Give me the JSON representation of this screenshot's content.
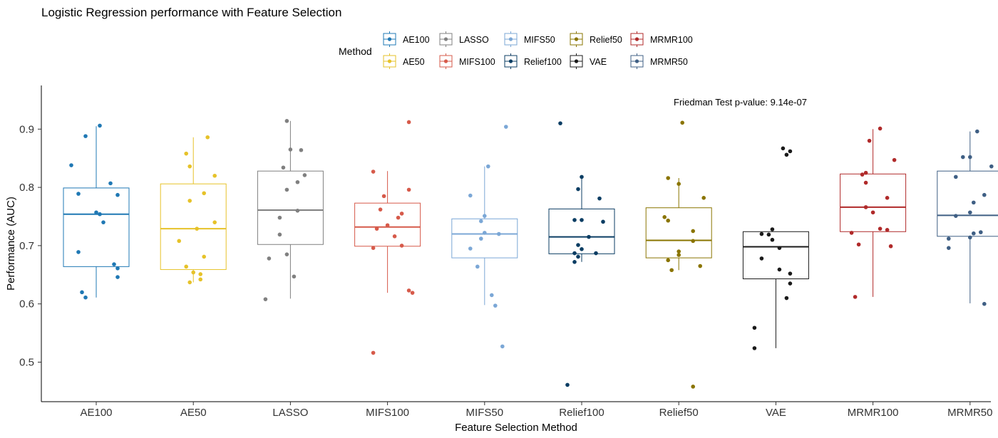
{
  "chart_data": {
    "type": "boxplot",
    "title": "Logistic Regression performance with Feature Selection",
    "xlabel": "Feature Selection Method",
    "ylabel": "Performance (AUC)",
    "ylim": [
      0.43,
      0.98
    ],
    "yticks": [
      0.5,
      0.6,
      0.7,
      0.8,
      0.9
    ],
    "ytick_labels": [
      "0.5",
      "0.6",
      "0.7",
      "0.8",
      "0.9"
    ],
    "annotation": "Friedman Test p-value: 9.14e-07",
    "legend": {
      "title": "Method",
      "placement": "top",
      "entries": [
        "AE100",
        "AE50",
        "LASSO",
        "MIFS100",
        "MIFS50",
        "Relief100",
        "Relief50",
        "VAE",
        "MRMR100",
        "MRMR50"
      ]
    },
    "grid": false,
    "categories": [
      "AE100",
      "AE50",
      "LASSO",
      "MIFS100",
      "MIFS50",
      "Relief100",
      "Relief50",
      "VAE",
      "MRMR100",
      "MRMR50"
    ],
    "series": [
      {
        "name": "AE100",
        "color": "#1f78b4",
        "box": {
          "lower": 0.611,
          "q1": 0.664,
          "median": 0.754,
          "q3": 0.799,
          "upper": 0.905
        },
        "points": [
          [
            -0.35,
            0.838
          ],
          [
            -0.15,
            0.888
          ],
          [
            0.05,
            0.906
          ],
          [
            -0.25,
            0.789
          ],
          [
            0.2,
            0.807
          ],
          [
            0.3,
            0.787
          ],
          [
            0.0,
            0.757
          ],
          [
            0.05,
            0.754
          ],
          [
            0.1,
            0.74
          ],
          [
            -0.25,
            0.689
          ],
          [
            0.25,
            0.668
          ],
          [
            0.3,
            0.661
          ],
          [
            0.3,
            0.646
          ],
          [
            -0.2,
            0.62
          ],
          [
            -0.15,
            0.611
          ]
        ]
      },
      {
        "name": "AE50",
        "color": "#e6c229",
        "box": {
          "lower": 0.637,
          "q1": 0.659,
          "median": 0.729,
          "q3": 0.806,
          "upper": 0.886
        },
        "points": [
          [
            0.2,
            0.886
          ],
          [
            -0.1,
            0.858
          ],
          [
            -0.05,
            0.836
          ],
          [
            0.3,
            0.82
          ],
          [
            0.15,
            0.79
          ],
          [
            -0.05,
            0.777
          ],
          [
            0.3,
            0.74
          ],
          [
            0.05,
            0.729
          ],
          [
            -0.2,
            0.708
          ],
          [
            0.15,
            0.681
          ],
          [
            -0.1,
            0.664
          ],
          [
            0.0,
            0.654
          ],
          [
            0.1,
            0.651
          ],
          [
            0.1,
            0.642
          ],
          [
            -0.05,
            0.637
          ]
        ]
      },
      {
        "name": "LASSO",
        "color": "#808080",
        "box": {
          "lower": 0.609,
          "q1": 0.702,
          "median": 0.761,
          "q3": 0.828,
          "upper": 0.914
        },
        "points": [
          [
            -0.05,
            0.914
          ],
          [
            0.0,
            0.865
          ],
          [
            0.15,
            0.864
          ],
          [
            -0.1,
            0.834
          ],
          [
            0.2,
            0.821
          ],
          [
            0.1,
            0.809
          ],
          [
            -0.05,
            0.796
          ],
          [
            0.1,
            0.76
          ],
          [
            -0.15,
            0.748
          ],
          [
            -0.15,
            0.719
          ],
          [
            -0.05,
            0.685
          ],
          [
            -0.3,
            0.678
          ],
          [
            0.05,
            0.647
          ],
          [
            -0.35,
            0.608
          ]
        ]
      },
      {
        "name": "MIFS100",
        "color": "#d65a4a",
        "box": {
          "lower": 0.619,
          "q1": 0.699,
          "median": 0.732,
          "q3": 0.773,
          "upper": 0.828
        },
        "points": [
          [
            0.3,
            0.912
          ],
          [
            -0.2,
            0.827
          ],
          [
            0.3,
            0.796
          ],
          [
            -0.05,
            0.785
          ],
          [
            -0.1,
            0.762
          ],
          [
            0.2,
            0.755
          ],
          [
            0.15,
            0.748
          ],
          [
            0.0,
            0.735
          ],
          [
            -0.15,
            0.729
          ],
          [
            0.1,
            0.716
          ],
          [
            0.2,
            0.7
          ],
          [
            -0.2,
            0.696
          ],
          [
            0.3,
            0.623
          ],
          [
            0.35,
            0.619
          ],
          [
            -0.2,
            0.516
          ]
        ]
      },
      {
        "name": "MIFS50",
        "color": "#7ba7d6",
        "box": {
          "lower": 0.598,
          "q1": 0.679,
          "median": 0.72,
          "q3": 0.746,
          "upper": 0.836
        },
        "points": [
          [
            0.3,
            0.904
          ],
          [
            0.05,
            0.836
          ],
          [
            -0.2,
            0.786
          ],
          [
            0.0,
            0.751
          ],
          [
            -0.05,
            0.742
          ],
          [
            0.0,
            0.722
          ],
          [
            0.2,
            0.72
          ],
          [
            -0.05,
            0.712
          ],
          [
            -0.2,
            0.695
          ],
          [
            -0.1,
            0.664
          ],
          [
            0.1,
            0.615
          ],
          [
            0.15,
            0.597
          ],
          [
            0.25,
            0.527
          ]
        ]
      },
      {
        "name": "Relief100",
        "color": "#0b3d63",
        "box": {
          "lower": 0.672,
          "q1": 0.686,
          "median": 0.715,
          "q3": 0.763,
          "upper": 0.818
        },
        "points": [
          [
            -0.3,
            0.91
          ],
          [
            0.0,
            0.818
          ],
          [
            -0.05,
            0.797
          ],
          [
            0.25,
            0.781
          ],
          [
            -0.1,
            0.744
          ],
          [
            0.0,
            0.744
          ],
          [
            0.3,
            0.741
          ],
          [
            0.1,
            0.715
          ],
          [
            -0.05,
            0.701
          ],
          [
            0.0,
            0.694
          ],
          [
            0.2,
            0.687
          ],
          [
            -0.1,
            0.687
          ],
          [
            -0.05,
            0.681
          ],
          [
            -0.1,
            0.672
          ],
          [
            -0.2,
            0.461
          ]
        ]
      },
      {
        "name": "Relief50",
        "color": "#8a7400",
        "box": {
          "lower": 0.658,
          "q1": 0.679,
          "median": 0.709,
          "q3": 0.765,
          "upper": 0.816
        },
        "points": [
          [
            0.05,
            0.911
          ],
          [
            -0.15,
            0.816
          ],
          [
            0.0,
            0.806
          ],
          [
            0.35,
            0.782
          ],
          [
            -0.2,
            0.749
          ],
          [
            -0.15,
            0.743
          ],
          [
            0.2,
            0.725
          ],
          [
            0.2,
            0.708
          ],
          [
            0.0,
            0.69
          ],
          [
            0.0,
            0.684
          ],
          [
            -0.15,
            0.675
          ],
          [
            0.3,
            0.665
          ],
          [
            -0.1,
            0.658
          ],
          [
            0.2,
            0.458
          ]
        ]
      },
      {
        "name": "VAE",
        "color": "#1a1a1a",
        "box": {
          "lower": 0.524,
          "q1": 0.643,
          "median": 0.698,
          "q3": 0.724,
          "upper": 0.724
        },
        "points": [
          [
            0.1,
            0.867
          ],
          [
            0.2,
            0.862
          ],
          [
            0.15,
            0.856
          ],
          [
            -0.05,
            0.728
          ],
          [
            -0.2,
            0.72
          ],
          [
            -0.1,
            0.719
          ],
          [
            -0.05,
            0.71
          ],
          [
            0.05,
            0.696
          ],
          [
            -0.2,
            0.678
          ],
          [
            0.05,
            0.659
          ],
          [
            0.2,
            0.652
          ],
          [
            0.2,
            0.635
          ],
          [
            0.15,
            0.61
          ],
          [
            -0.3,
            0.559
          ],
          [
            -0.3,
            0.524
          ]
        ]
      },
      {
        "name": "MRMR100",
        "color": "#b02a2a",
        "box": {
          "lower": 0.612,
          "q1": 0.724,
          "median": 0.766,
          "q3": 0.823,
          "upper": 0.9
        },
        "points": [
          [
            0.1,
            0.901
          ],
          [
            -0.05,
            0.88
          ],
          [
            0.3,
            0.847
          ],
          [
            -0.1,
            0.825
          ],
          [
            -0.15,
            0.822
          ],
          [
            -0.1,
            0.808
          ],
          [
            0.2,
            0.782
          ],
          [
            -0.1,
            0.766
          ],
          [
            0.0,
            0.757
          ],
          [
            0.1,
            0.729
          ],
          [
            0.2,
            0.727
          ],
          [
            -0.3,
            0.722
          ],
          [
            -0.2,
            0.702
          ],
          [
            0.25,
            0.699
          ],
          [
            -0.25,
            0.612
          ]
        ]
      },
      {
        "name": "MRMR50",
        "color": "#3f5f84",
        "box": {
          "lower": 0.601,
          "q1": 0.716,
          "median": 0.752,
          "q3": 0.828,
          "upper": 0.896
        },
        "points": [
          [
            0.1,
            0.896
          ],
          [
            -0.1,
            0.852
          ],
          [
            0.0,
            0.852
          ],
          [
            0.3,
            0.836
          ],
          [
            -0.2,
            0.818
          ],
          [
            0.2,
            0.787
          ],
          [
            0.05,
            0.774
          ],
          [
            0.0,
            0.757
          ],
          [
            -0.2,
            0.751
          ],
          [
            0.15,
            0.723
          ],
          [
            0.05,
            0.721
          ],
          [
            0.0,
            0.714
          ],
          [
            -0.3,
            0.712
          ],
          [
            -0.3,
            0.696
          ],
          [
            0.2,
            0.6
          ]
        ]
      }
    ]
  }
}
